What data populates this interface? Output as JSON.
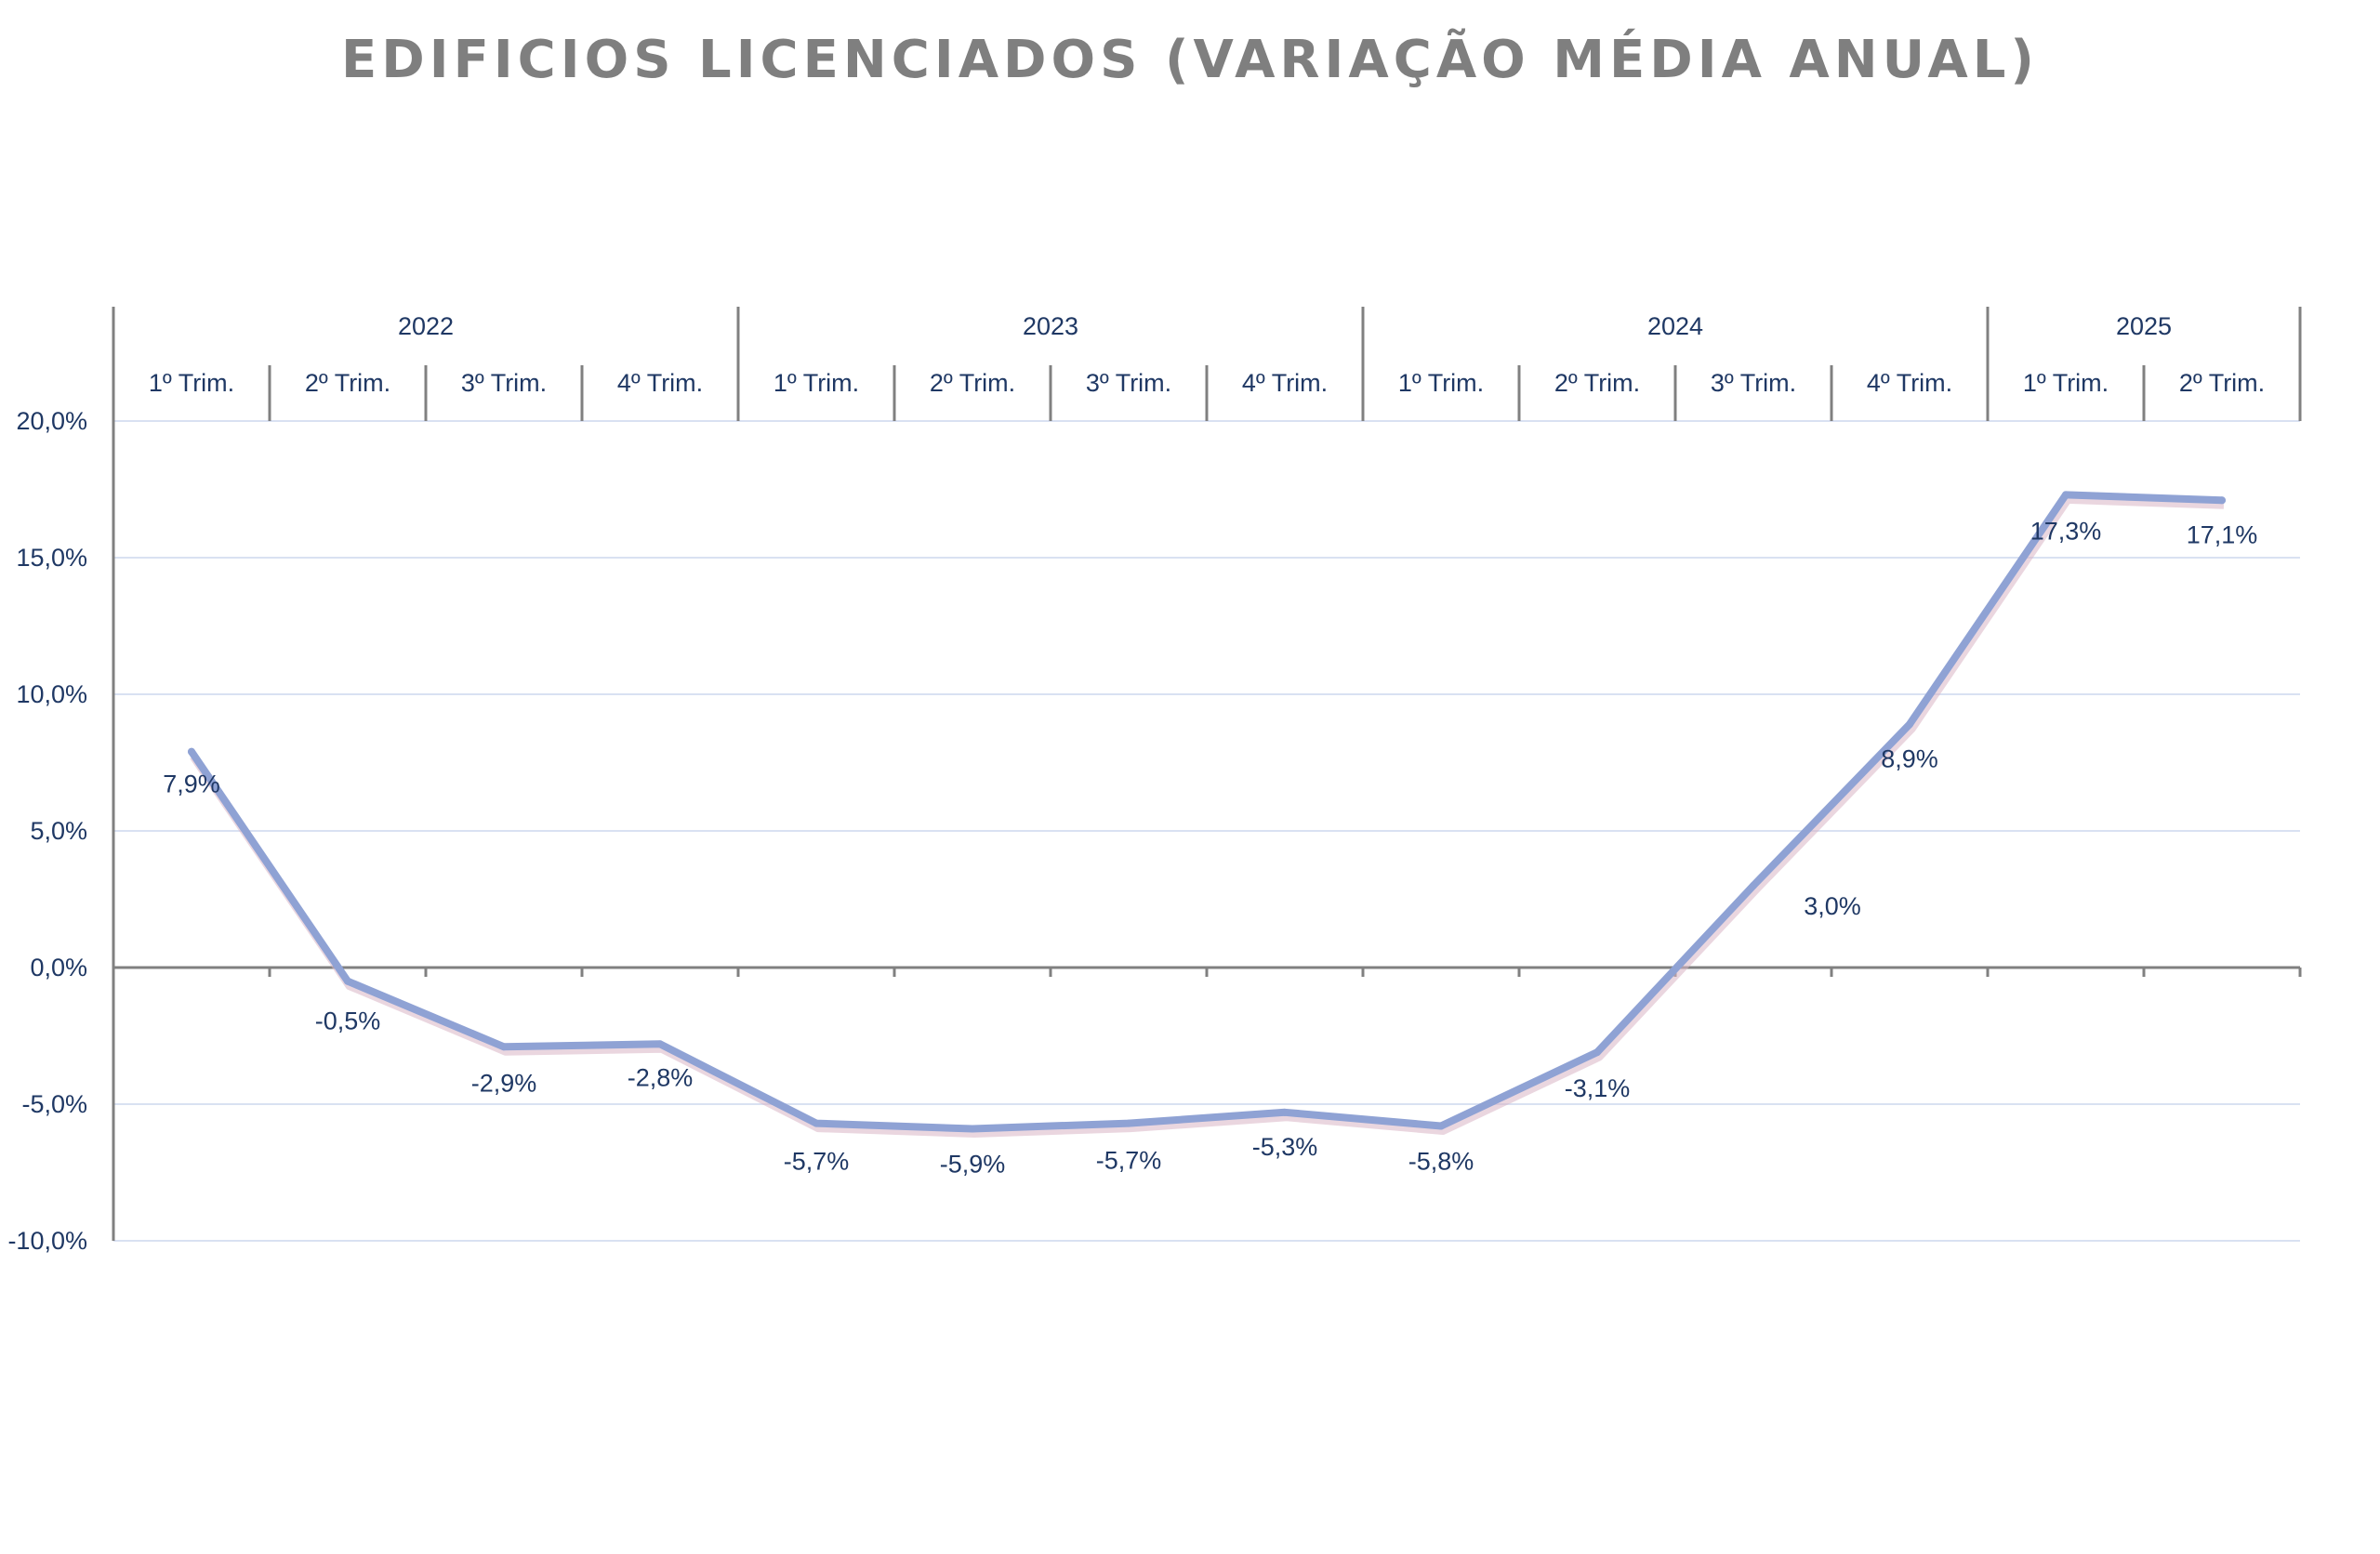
{
  "chart_data": {
    "type": "line",
    "title": "EDIFICIOS LICENCIADOS (VARIAÇÃO MÉDIA ANUAL)",
    "xlabel": "",
    "ylabel": "",
    "years": [
      {
        "label": "2022",
        "quarters": 4
      },
      {
        "label": "2023",
        "quarters": 4
      },
      {
        "label": "2024",
        "quarters": 4
      },
      {
        "label": "2025",
        "quarters": 2
      }
    ],
    "categories": [
      "1º Trim.",
      "2º Trim.",
      "3º Trim.",
      "4º Trim.",
      "1º Trim.",
      "2º Trim.",
      "3º Trim.",
      "4º Trim.",
      "1º Trim.",
      "2º Trim.",
      "3º Trim.",
      "4º Trim.",
      "1º Trim.",
      "2º Trim."
    ],
    "series": [
      {
        "values": [
          7.9,
          -0.5,
          -2.9,
          -2.8,
          -5.7,
          -5.9,
          -5.7,
          -5.3,
          -5.8,
          -3.1,
          3.0,
          8.9,
          17.3,
          17.1
        ],
        "labels": [
          "7,9%",
          "-0,5%",
          "-2,9%",
          "-2,8%",
          "-5,7%",
          "-5,9%",
          "-5,7%",
          "-5,3%",
          "-5,8%",
          "-3,1%",
          "3,0%",
          "8,9%",
          "17,3%",
          "17,1%"
        ],
        "color": "#8fa2d4"
      }
    ],
    "ylim": [
      -10,
      20
    ],
    "yticks": [
      20,
      15,
      10,
      5,
      0,
      -5,
      -10
    ],
    "ytick_labels": [
      "20,0%",
      "15,0%",
      "10,0%",
      "5,0%",
      "0,0%",
      "-5,0%",
      "-10,0%"
    ],
    "grid": true,
    "legend": "none",
    "colors": {
      "title": "#7f7f7f",
      "text": "#1f3864",
      "line": "#8fa2d4",
      "shadow": "#d8b4c4",
      "grid": "#d9e1f2",
      "axis": "#808080"
    }
  }
}
